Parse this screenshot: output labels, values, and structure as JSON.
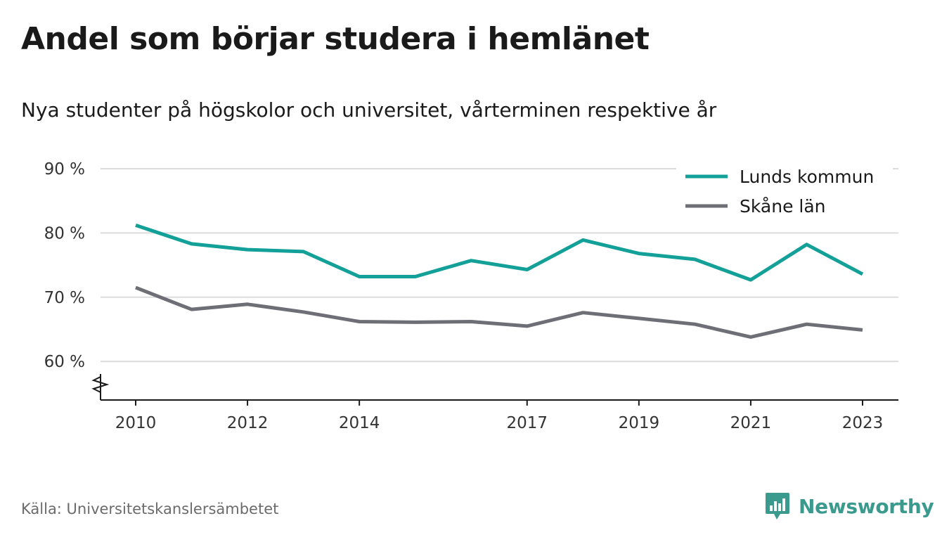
{
  "header": {
    "title": "Andel som börjar studera i hemlänet",
    "subtitle": "Nya studenter på högskolor och universitet, vårterminen respektive år"
  },
  "footer": {
    "source": "Källa: Universitetskanslersämbetet",
    "brand": "Newsworthy",
    "brand_icon": "bar-chart-speech-bubble-icon"
  },
  "colors": {
    "lunds": "#12a098",
    "skane": "#6e6e76",
    "grid": "#dcdcdc",
    "brand": "#3a9a8e"
  },
  "chart_data": {
    "type": "line",
    "x": [
      2010,
      2011,
      2012,
      2013,
      2014,
      2015,
      2016,
      2017,
      2018,
      2019,
      2020,
      2021,
      2022,
      2023
    ],
    "xticks": [
      2010,
      2012,
      2014,
      2017,
      2019,
      2021,
      2023
    ],
    "xtick_labels": [
      "2010",
      "2012",
      "2014",
      "2017",
      "2019",
      "2021",
      "2023"
    ],
    "yticks": [
      60,
      70,
      80,
      90
    ],
    "ytick_labels": [
      "60 %",
      "70 %",
      "80 %",
      "90 %"
    ],
    "ylim": [
      54,
      90
    ],
    "axis_break": true,
    "grid": true,
    "legend_position": "top-right",
    "series": [
      {
        "name": "Lunds kommun",
        "color": "#12a098",
        "values": [
          81.2,
          78.3,
          77.4,
          77.1,
          73.2,
          73.2,
          75.7,
          74.3,
          78.9,
          76.8,
          75.9,
          72.7,
          78.2,
          73.6
        ]
      },
      {
        "name": "Skåne län",
        "color": "#6e6e76",
        "values": [
          71.5,
          68.1,
          68.9,
          67.7,
          66.2,
          66.1,
          66.2,
          65.5,
          67.6,
          66.7,
          65.8,
          63.8,
          65.8,
          64.9
        ]
      }
    ]
  }
}
